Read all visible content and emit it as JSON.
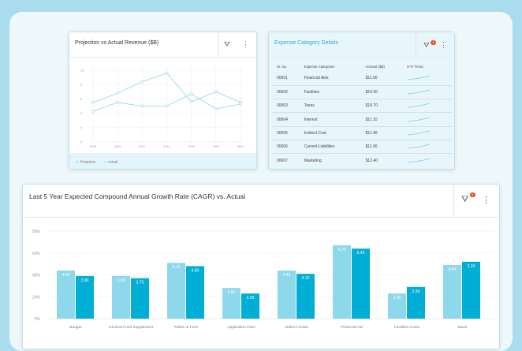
{
  "line_card": {
    "title": "Projection vs Actual Revenue ($B)",
    "filter_icon": "filter-icon",
    "menu_icon": "more-vertical-icon"
  },
  "expense_card": {
    "title": "Expense Category Details",
    "filter_badge": "1",
    "columns": [
      "Sr. No.",
      "Expense Categories",
      "Amount ($B)",
      "5-Yr Trend"
    ],
    "rows": [
      [
        "00001",
        "Financial Aids",
        "$11.00"
      ],
      [
        "00002",
        "Facilities",
        "$10.50"
      ],
      [
        "00003",
        "Taxes",
        "$10.70"
      ],
      [
        "00004",
        "Interest",
        "$11.10"
      ],
      [
        "00005",
        "Indirect Cost",
        "$11.40"
      ],
      [
        "00006",
        "Current Liabilities",
        "$11.90"
      ],
      [
        "00007",
        "Marketing",
        "$12.40"
      ]
    ]
  },
  "bar_card": {
    "title": "Last 5 Year Expected Compound Annual Growth Rate (CAGR) vs. Actual",
    "filter_badge": "1"
  },
  "chart_data": [
    {
      "type": "line",
      "title": "Projection vs Actual Revenue ($B)",
      "x": [
        "2015",
        "2016",
        "2017",
        "2018",
        "2019",
        "2020",
        "2021"
      ],
      "yticks": [
        "0",
        "2",
        "4",
        "6",
        "8",
        "10"
      ],
      "ylim": [
        0,
        10
      ],
      "series": [
        {
          "name": "Projection",
          "values": [
            5.5,
            6.8,
            8.4,
            9.6,
            5.6,
            7.0,
            5.5
          ],
          "color": "#8fd3e8"
        },
        {
          "name": "Actual",
          "values": [
            4.3,
            5.5,
            5.0,
            5.0,
            6.7,
            4.6,
            5.3
          ],
          "color": "#8fd3e8"
        }
      ],
      "legend": "bottom-left"
    },
    {
      "type": "bar",
      "title": "Last 5 Year Expected Compound Annual Growth Rate (CAGR) vs. Actual",
      "categories": [
        "Budget",
        "General Fund Supplement",
        "Tuition & Fees",
        "Application Fees",
        "Indirect Costs",
        "Financial Aid",
        "Facilities Costs",
        "Taxes"
      ],
      "yticks": [
        "0%",
        "20%",
        "40%",
        "60%",
        "80%"
      ],
      "ylim": [
        0,
        8
      ],
      "series": [
        {
          "name": "Expected",
          "values": [
            4.4,
            3.9,
            5.1,
            2.8,
            4.4,
            6.7,
            2.3,
            4.9
          ],
          "labels": [
            "4.40",
            "3.90",
            "5.10",
            "2.80",
            "4.40",
            "6.70",
            "2.30",
            "4.90"
          ],
          "color": "#8dd8ea"
        },
        {
          "name": "Actual",
          "values": [
            3.9,
            3.7,
            4.8,
            2.3,
            4.1,
            6.4,
            2.9,
            5.2
          ],
          "labels": [
            "3.90",
            "3.70",
            "4.80",
            "2.30",
            "4.10",
            "6.40",
            "2.90",
            "5.20"
          ],
          "color": "#00aed6"
        }
      ]
    }
  ]
}
